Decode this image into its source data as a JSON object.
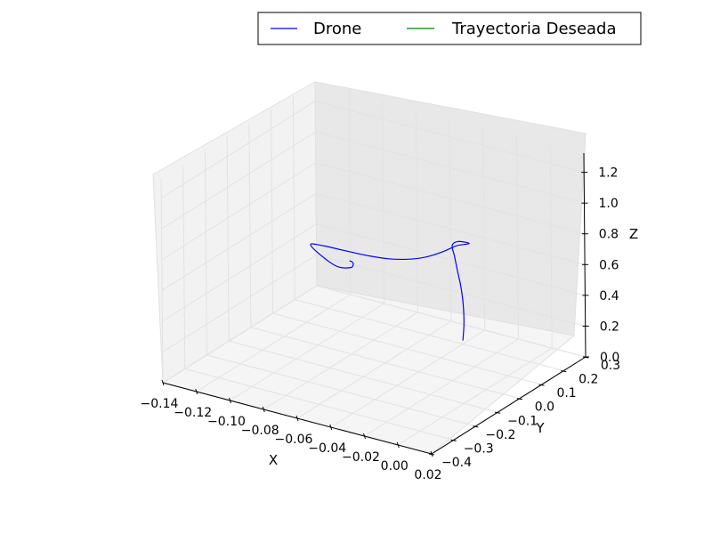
{
  "chart_data": {
    "type": "line",
    "projection": "3d",
    "xlabel": "X",
    "ylabel": "Y",
    "zlabel": "Z",
    "xlim": [
      -0.14,
      0.02
    ],
    "ylim": [
      -0.4,
      0.3
    ],
    "zlim": [
      0.0,
      1.2
    ],
    "x_ticks": [
      "−0.14",
      "−0.12",
      "−0.10",
      "−0.08",
      "−0.06",
      "−0.04",
      "−0.02",
      "0.00",
      "0.02"
    ],
    "y_ticks": [
      "−0.4",
      "−0.3",
      "−0.2",
      "−0.1",
      "0.0",
      "0.1",
      "0.2",
      "0.3"
    ],
    "z_ticks": [
      "0.0",
      "0.2",
      "0.4",
      "0.6",
      "0.8",
      "1.0",
      "1.2"
    ],
    "grid": true,
    "legend_position": "top-right",
    "series": [
      {
        "name": "Drone",
        "color": "#0000ff",
        "points": [
          [
            -0.031,
            0.132,
            0.11
          ],
          [
            -0.03,
            0.13,
            0.22
          ],
          [
            -0.03,
            0.128,
            0.34
          ],
          [
            -0.031,
            0.126,
            0.46
          ],
          [
            -0.033,
            0.126,
            0.56
          ],
          [
            -0.035,
            0.128,
            0.65
          ],
          [
            -0.037,
            0.133,
            0.71
          ],
          [
            -0.034,
            0.138,
            0.74
          ],
          [
            -0.028,
            0.142,
            0.74
          ],
          [
            -0.035,
            0.137,
            0.71
          ],
          [
            -0.042,
            0.125,
            0.66
          ],
          [
            -0.05,
            0.105,
            0.62
          ],
          [
            -0.057,
            0.08,
            0.61
          ],
          [
            -0.064,
            0.05,
            0.62
          ],
          [
            -0.071,
            0.015,
            0.65
          ],
          [
            -0.08,
            -0.03,
            0.7
          ],
          [
            -0.087,
            -0.065,
            0.74
          ],
          [
            -0.092,
            -0.09,
            0.76
          ],
          [
            -0.088,
            -0.086,
            0.71
          ],
          [
            -0.079,
            -0.073,
            0.64
          ],
          [
            -0.072,
            -0.061,
            0.64
          ],
          [
            -0.071,
            -0.058,
            0.67
          ],
          [
            -0.073,
            -0.059,
            0.68
          ]
        ]
      },
      {
        "name": "Trayectoria Deseada",
        "color": "#008000",
        "points": []
      }
    ]
  }
}
